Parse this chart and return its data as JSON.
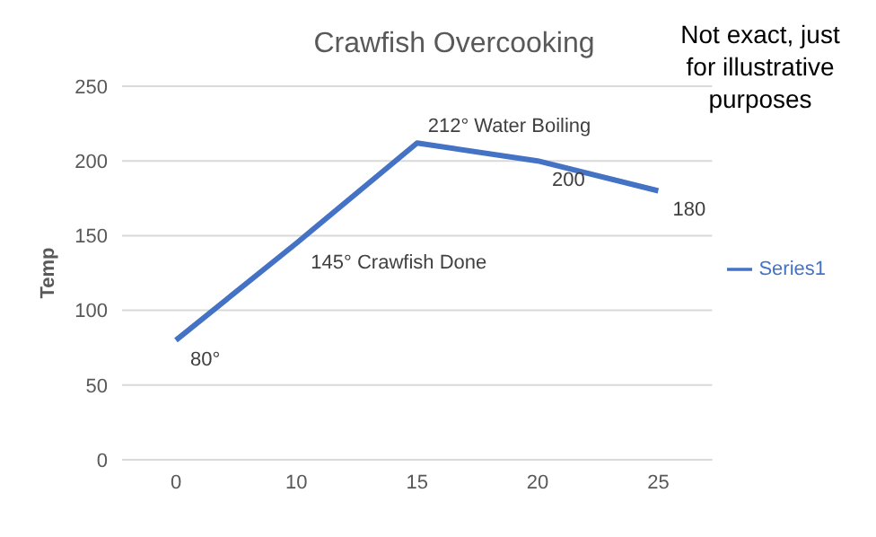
{
  "chart_data": {
    "type": "line",
    "title": "Crawfish Overcooking",
    "ylabel": "Temp",
    "annotations": [
      "Not exact, just for illustrative purposes"
    ],
    "categories": [
      "0",
      "10",
      "15",
      "20",
      "25"
    ],
    "series": [
      {
        "name": "Series1",
        "color": "#4472c4",
        "values": [
          80,
          145,
          212,
          200,
          180
        ],
        "value_labels": [
          "80°",
          "145° Crawfish Done",
          "212° Water Boiling",
          "200",
          "180"
        ]
      }
    ],
    "ylim": [
      0,
      250
    ],
    "yticks": [
      0,
      50,
      100,
      150,
      200,
      250
    ],
    "grid": "y",
    "legend": "right",
    "marker": "none",
    "line_style": "solid"
  }
}
